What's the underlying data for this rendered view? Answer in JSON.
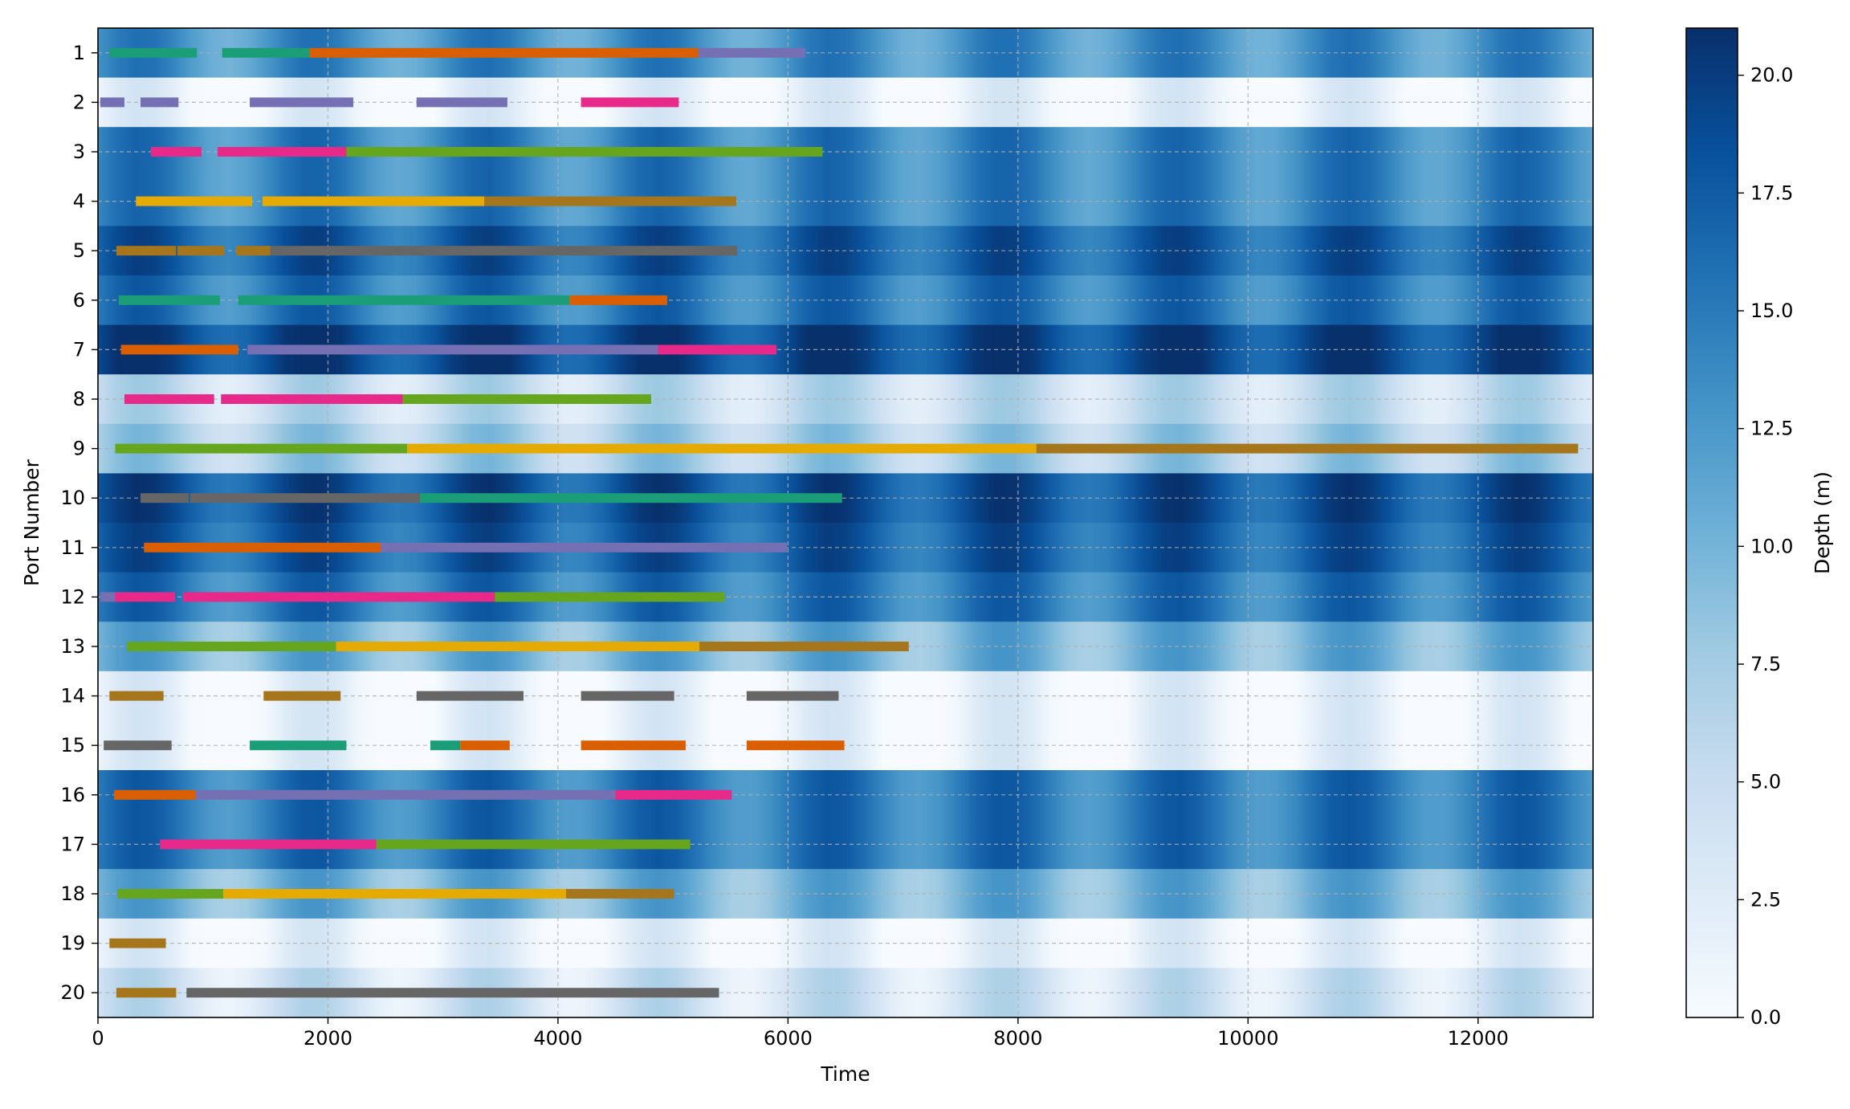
{
  "chart_data": {
    "type": "heatmap",
    "title": "",
    "xlabel": "Time",
    "ylabel": "Port Number",
    "xlim": [
      0,
      13000
    ],
    "x_ticks": [
      0,
      2000,
      4000,
      6000,
      8000,
      10000,
      12000
    ],
    "y_categories": [
      "1",
      "2",
      "3",
      "4",
      "5",
      "6",
      "7",
      "8",
      "9",
      "10",
      "11",
      "12",
      "13",
      "14",
      "15",
      "16",
      "17",
      "18",
      "19",
      "20"
    ],
    "grid": true,
    "colorbar": {
      "label": "Depth (m)",
      "range": [
        0,
        21
      ],
      "ticks": [
        "0.0",
        "2.5",
        "5.0",
        "7.5",
        "10.0",
        "12.5",
        "15.0",
        "17.5",
        "20.0"
      ],
      "colormap": "Blues"
    },
    "depth_profile": {
      "base_depth_by_port": [
        13,
        1,
        14,
        14,
        17,
        15,
        19,
        5,
        7,
        18,
        17,
        15,
        10,
        1,
        1,
        15,
        15,
        10,
        1,
        4
      ],
      "tidal_amplitude": 3,
      "tidal_period": 1500
    },
    "series_colors": {
      "teal": "#1b9e77",
      "orange": "#d95f02",
      "purple": "#7570b3",
      "magenta": "#e7298a",
      "green": "#66a61e",
      "yellow": "#e6ab02",
      "brown": "#a6761d",
      "gray": "#666666"
    },
    "tasks": [
      {
        "port": 1,
        "start": 100,
        "end": 860,
        "c": "teal"
      },
      {
        "port": 1,
        "start": 1080,
        "end": 1840,
        "c": "teal"
      },
      {
        "port": 1,
        "start": 1840,
        "end": 5220,
        "c": "orange"
      },
      {
        "port": 1,
        "start": 5220,
        "end": 6150,
        "c": "purple"
      },
      {
        "port": 2,
        "start": 20,
        "end": 230,
        "c": "purple"
      },
      {
        "port": 2,
        "start": 370,
        "end": 700,
        "c": "purple"
      },
      {
        "port": 2,
        "start": 1320,
        "end": 2220,
        "c": "purple"
      },
      {
        "port": 2,
        "start": 2770,
        "end": 3560,
        "c": "purple"
      },
      {
        "port": 2,
        "start": 4200,
        "end": 5050,
        "c": "magenta"
      },
      {
        "port": 3,
        "start": 460,
        "end": 900,
        "c": "magenta"
      },
      {
        "port": 3,
        "start": 1040,
        "end": 2160,
        "c": "magenta"
      },
      {
        "port": 3,
        "start": 2160,
        "end": 6300,
        "c": "green"
      },
      {
        "port": 4,
        "start": 330,
        "end": 1340,
        "c": "yellow"
      },
      {
        "port": 4,
        "start": 1430,
        "end": 3360,
        "c": "yellow"
      },
      {
        "port": 4,
        "start": 3360,
        "end": 5550,
        "c": "brown"
      },
      {
        "port": 5,
        "start": 160,
        "end": 680,
        "c": "brown"
      },
      {
        "port": 5,
        "start": 690,
        "end": 1100,
        "c": "brown"
      },
      {
        "port": 5,
        "start": 1200,
        "end": 1500,
        "c": "brown"
      },
      {
        "port": 5,
        "start": 1500,
        "end": 5560,
        "c": "gray"
      },
      {
        "port": 6,
        "start": 180,
        "end": 1060,
        "c": "teal"
      },
      {
        "port": 6,
        "start": 1220,
        "end": 4100,
        "c": "teal"
      },
      {
        "port": 6,
        "start": 4100,
        "end": 4950,
        "c": "orange"
      },
      {
        "port": 7,
        "start": 200,
        "end": 1220,
        "c": "orange"
      },
      {
        "port": 7,
        "start": 1300,
        "end": 4870,
        "c": "purple"
      },
      {
        "port": 7,
        "start": 4870,
        "end": 5900,
        "c": "magenta"
      },
      {
        "port": 8,
        "start": 230,
        "end": 1010,
        "c": "magenta"
      },
      {
        "port": 8,
        "start": 1070,
        "end": 2650,
        "c": "magenta"
      },
      {
        "port": 8,
        "start": 2650,
        "end": 4810,
        "c": "green"
      },
      {
        "port": 9,
        "start": 150,
        "end": 2690,
        "c": "green"
      },
      {
        "port": 9,
        "start": 2690,
        "end": 8160,
        "c": "yellow"
      },
      {
        "port": 9,
        "start": 8160,
        "end": 12870,
        "c": "brown"
      },
      {
        "port": 10,
        "start": 370,
        "end": 790,
        "c": "gray"
      },
      {
        "port": 10,
        "start": 800,
        "end": 2800,
        "c": "gray"
      },
      {
        "port": 10,
        "start": 2800,
        "end": 6470,
        "c": "teal"
      },
      {
        "port": 11,
        "start": 400,
        "end": 2460,
        "c": "orange"
      },
      {
        "port": 11,
        "start": 2460,
        "end": 5990,
        "c": "purple"
      },
      {
        "port": 12,
        "start": 20,
        "end": 150,
        "c": "purple"
      },
      {
        "port": 12,
        "start": 150,
        "end": 670,
        "c": "magenta"
      },
      {
        "port": 12,
        "start": 740,
        "end": 3450,
        "c": "magenta"
      },
      {
        "port": 12,
        "start": 3450,
        "end": 5450,
        "c": "green"
      },
      {
        "port": 13,
        "start": 250,
        "end": 2070,
        "c": "green"
      },
      {
        "port": 13,
        "start": 2070,
        "end": 5230,
        "c": "yellow"
      },
      {
        "port": 13,
        "start": 5230,
        "end": 7050,
        "c": "brown"
      },
      {
        "port": 14,
        "start": 100,
        "end": 570,
        "c": "brown"
      },
      {
        "port": 14,
        "start": 1440,
        "end": 2110,
        "c": "brown"
      },
      {
        "port": 14,
        "start": 2770,
        "end": 3700,
        "c": "gray"
      },
      {
        "port": 14,
        "start": 4200,
        "end": 5010,
        "c": "gray"
      },
      {
        "port": 14,
        "start": 5640,
        "end": 6440,
        "c": "gray"
      },
      {
        "port": 15,
        "start": 50,
        "end": 640,
        "c": "gray"
      },
      {
        "port": 15,
        "start": 1320,
        "end": 2160,
        "c": "teal"
      },
      {
        "port": 15,
        "start": 2890,
        "end": 3150,
        "c": "teal"
      },
      {
        "port": 15,
        "start": 3150,
        "end": 3580,
        "c": "orange"
      },
      {
        "port": 15,
        "start": 4200,
        "end": 5110,
        "c": "orange"
      },
      {
        "port": 15,
        "start": 5640,
        "end": 6490,
        "c": "orange"
      },
      {
        "port": 16,
        "start": 140,
        "end": 850,
        "c": "orange"
      },
      {
        "port": 16,
        "start": 850,
        "end": 4500,
        "c": "purple"
      },
      {
        "port": 16,
        "start": 4500,
        "end": 5510,
        "c": "magenta"
      },
      {
        "port": 17,
        "start": 540,
        "end": 2420,
        "c": "magenta"
      },
      {
        "port": 17,
        "start": 2420,
        "end": 5150,
        "c": "green"
      },
      {
        "port": 18,
        "start": 170,
        "end": 1090,
        "c": "green"
      },
      {
        "port": 18,
        "start": 1090,
        "end": 4070,
        "c": "yellow"
      },
      {
        "port": 18,
        "start": 4070,
        "end": 5010,
        "c": "brown"
      },
      {
        "port": 19,
        "start": 100,
        "end": 590,
        "c": "brown"
      },
      {
        "port": 20,
        "start": 160,
        "end": 680,
        "c": "brown"
      },
      {
        "port": 20,
        "start": 770,
        "end": 5400,
        "c": "gray"
      }
    ]
  }
}
